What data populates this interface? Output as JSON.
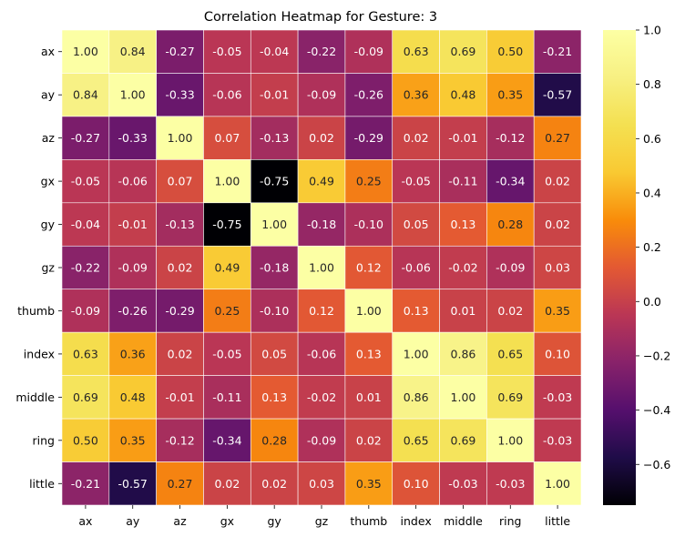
{
  "chart_data": {
    "type": "heatmap",
    "title": "Correlation Heatmap for Gesture: 3",
    "xlabel": "",
    "ylabel": "",
    "x_categories": [
      "ax",
      "ay",
      "az",
      "gx",
      "gy",
      "gz",
      "thumb",
      "index",
      "middle",
      "ring",
      "little"
    ],
    "y_categories": [
      "ax",
      "ay",
      "az",
      "gx",
      "gy",
      "gz",
      "thumb",
      "index",
      "middle",
      "ring",
      "little"
    ],
    "values": [
      [
        1.0,
        0.84,
        -0.27,
        -0.05,
        -0.04,
        -0.22,
        -0.09,
        0.63,
        0.69,
        0.5,
        -0.21
      ],
      [
        0.84,
        1.0,
        -0.33,
        -0.06,
        -0.01,
        -0.09,
        -0.26,
        0.36,
        0.48,
        0.35,
        -0.57
      ],
      [
        -0.27,
        -0.33,
        1.0,
        0.07,
        -0.13,
        0.02,
        -0.29,
        0.02,
        -0.01,
        -0.12,
        0.27
      ],
      [
        -0.05,
        -0.06,
        0.07,
        1.0,
        -0.75,
        0.49,
        0.25,
        -0.05,
        -0.11,
        -0.34,
        0.02
      ],
      [
        -0.04,
        -0.01,
        -0.13,
        -0.75,
        1.0,
        -0.18,
        -0.1,
        0.05,
        0.13,
        0.28,
        0.02
      ],
      [
        -0.22,
        -0.09,
        0.02,
        0.49,
        -0.18,
        1.0,
        0.12,
        -0.06,
        -0.02,
        -0.09,
        0.03
      ],
      [
        -0.09,
        -0.26,
        -0.29,
        0.25,
        -0.1,
        0.12,
        1.0,
        0.13,
        0.01,
        0.02,
        0.35
      ],
      [
        0.63,
        0.36,
        0.02,
        -0.05,
        0.05,
        -0.06,
        0.13,
        1.0,
        0.86,
        0.65,
        0.1
      ],
      [
        0.69,
        0.48,
        -0.01,
        -0.11,
        0.13,
        -0.02,
        0.01,
        0.86,
        1.0,
        0.69,
        -0.03
      ],
      [
        0.5,
        0.35,
        -0.12,
        -0.34,
        0.28,
        -0.09,
        0.02,
        0.65,
        0.69,
        1.0,
        -0.03
      ],
      [
        -0.21,
        -0.57,
        0.27,
        0.02,
        0.02,
        0.03,
        0.35,
        0.1,
        -0.03,
        -0.03,
        1.0
      ]
    ],
    "value_format": "0.00",
    "colormap": "inferno",
    "vmin": -0.75,
    "vmax": 1.0,
    "colorbar": {
      "ticks": [
        1.0,
        0.8,
        0.6,
        0.4,
        0.2,
        0.0,
        -0.2,
        -0.4,
        -0.6
      ],
      "tick_labels": [
        "1.0",
        "0.8",
        "0.6",
        "0.4",
        "0.2",
        "0.0",
        "−0.2",
        "−0.4",
        "−0.6"
      ]
    },
    "grid": true,
    "cell_border_color": "#ffffff",
    "legend": "colorbar-right"
  }
}
